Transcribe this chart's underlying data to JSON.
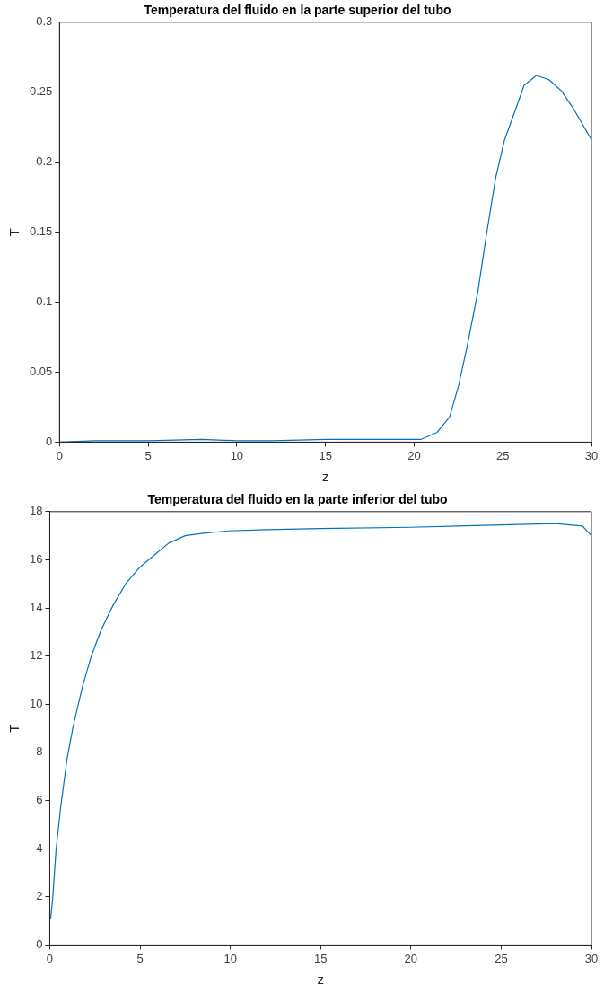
{
  "chart_data": [
    {
      "type": "line",
      "title": "Temperatura del fluido en la parte superior del tubo",
      "xlabel": "z",
      "ylabel": "T",
      "xlim": [
        0,
        30
      ],
      "ylim": [
        0,
        0.3
      ],
      "xticks": [
        0,
        5,
        10,
        15,
        20,
        25,
        30
      ],
      "yticks": [
        0,
        0.05,
        0.1,
        0.15,
        0.2,
        0.25,
        0.3
      ],
      "marker": "none",
      "line_style": "solid",
      "legend": false,
      "series": [
        {
          "color": "#0072bd",
          "x": [
            0,
            2,
            5,
            8,
            10,
            12,
            15,
            18,
            20,
            20.4,
            21.3,
            22,
            22.5,
            23,
            23.6,
            24.1,
            24.6,
            25.1,
            25.7,
            26.2,
            26.9,
            27.6,
            28.3,
            29,
            30
          ],
          "values": [
            0,
            0.001,
            0.001,
            0.002,
            0.001,
            0.001,
            0.002,
            0.002,
            0.002,
            0.002,
            0.007,
            0.018,
            0.04,
            0.069,
            0.108,
            0.15,
            0.189,
            0.216,
            0.237,
            0.255,
            0.262,
            0.259,
            0.251,
            0.238,
            0.216
          ]
        }
      ]
    },
    {
      "type": "line",
      "title": "Temperatura del fluido en la parte inferior del tubo",
      "xlabel": "z",
      "ylabel": "T",
      "xlim": [
        0,
        30
      ],
      "ylim": [
        0,
        18
      ],
      "xticks": [
        0,
        5,
        10,
        15,
        20,
        25,
        30
      ],
      "yticks": [
        0,
        2,
        4,
        6,
        8,
        10,
        12,
        14,
        16,
        18
      ],
      "marker": "none",
      "line_style": "solid",
      "legend": false,
      "series": [
        {
          "color": "#0072bd",
          "x": [
            0.05,
            0.17,
            0.34,
            0.6,
            0.95,
            1.3,
            1.8,
            2.3,
            2.85,
            3.5,
            4.2,
            5,
            5.8,
            6.6,
            7.5,
            8.5,
            9.9,
            12,
            15,
            20,
            25,
            28,
            29.5,
            30
          ],
          "values": [
            1.1,
            2,
            3.9,
            5.7,
            7.7,
            9.1,
            10.7,
            12,
            13.1,
            14.1,
            15,
            15.7,
            16.2,
            16.7,
            17,
            17.1,
            17.2,
            17.25,
            17.3,
            17.35,
            17.45,
            17.5,
            17.4,
            17
          ]
        }
      ]
    }
  ]
}
